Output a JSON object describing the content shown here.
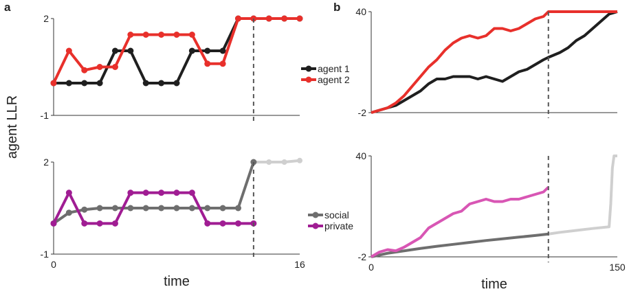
{
  "panel_labels": {
    "a": "a",
    "b": "b"
  },
  "shared_ylabel": "agent LLR",
  "colors": {
    "agent1": "#1f1f1f",
    "agent2": "#e8302b",
    "social": "#6e6e6e",
    "social_after": "#cfcfcf",
    "private_a": "#a01d93",
    "private_b": "#d856b4",
    "dashed": "#555555"
  },
  "chart_data": [
    {
      "id": "a-top",
      "type": "line",
      "ylim": [
        -1,
        2
      ],
      "yticks": [
        "2",
        "-1"
      ],
      "xlim": [
        0,
        16
      ],
      "decision_time": 13,
      "series": [
        {
          "name": "agent 1",
          "color": "agent1",
          "x": [
            0,
            1,
            2,
            3,
            4,
            5,
            6,
            7,
            8,
            9,
            10,
            11,
            12,
            13,
            14,
            15,
            16
          ],
          "y": [
            0,
            0,
            0,
            0,
            1,
            1,
            0,
            0,
            0,
            1,
            1,
            1,
            2,
            2,
            2,
            2,
            2
          ]
        },
        {
          "name": "agent 2",
          "color": "agent2",
          "x": [
            0,
            1,
            2,
            3,
            4,
            5,
            6,
            7,
            8,
            9,
            10,
            11,
            12,
            13,
            14,
            15,
            16
          ],
          "y": [
            0,
            1,
            0.4,
            0.5,
            0.5,
            1.5,
            1.5,
            1.5,
            1.5,
            1.5,
            0.6,
            0.6,
            2,
            2,
            2,
            2,
            2
          ]
        }
      ]
    },
    {
      "id": "a-bottom",
      "type": "line",
      "ylim": [
        -1,
        2
      ],
      "yticks": [
        "2",
        "-1"
      ],
      "xlim": [
        0,
        16
      ],
      "xticks": [
        "0",
        "16"
      ],
      "xlabel": "time",
      "decision_time": 13,
      "series": [
        {
          "name": "social",
          "color": "social",
          "after_color": "social_after",
          "x": [
            0,
            1,
            2,
            3,
            4,
            5,
            6,
            7,
            8,
            9,
            10,
            11,
            12,
            13,
            14,
            15,
            16
          ],
          "y": [
            0,
            0.35,
            0.45,
            0.5,
            0.5,
            0.5,
            0.5,
            0.5,
            0.5,
            0.5,
            0.5,
            0.5,
            0.5,
            2,
            2,
            2,
            2.05
          ]
        },
        {
          "name": "private",
          "color": "private_a",
          "x": [
            0,
            1,
            2,
            3,
            4,
            5,
            6,
            7,
            8,
            9,
            10,
            11,
            12,
            13
          ],
          "y": [
            0,
            1,
            0,
            0,
            0,
            1,
            1,
            1,
            1,
            1,
            0,
            0,
            0,
            0
          ]
        }
      ]
    },
    {
      "id": "b-top",
      "type": "line",
      "ylim": [
        -2,
        40
      ],
      "yticks": [
        "40",
        "-2"
      ],
      "xlim": [
        0,
        150
      ],
      "decision_time": 108,
      "series": [
        {
          "name": "agent 1",
          "color": "agent1",
          "x": [
            0,
            5,
            10,
            15,
            20,
            25,
            30,
            35,
            40,
            45,
            50,
            55,
            60,
            65,
            70,
            75,
            80,
            85,
            90,
            95,
            100,
            105,
            108,
            115,
            120,
            125,
            130,
            135,
            140,
            145,
            150
          ],
          "y": [
            -2,
            -1,
            0,
            1,
            3,
            5,
            7,
            10,
            12,
            12,
            13,
            13,
            13,
            12,
            13,
            12,
            11,
            13,
            15,
            16,
            18,
            20,
            21,
            23,
            25,
            28,
            30,
            33,
            36,
            39,
            40
          ]
        },
        {
          "name": "agent 2",
          "color": "agent2",
          "x": [
            0,
            5,
            10,
            15,
            20,
            25,
            30,
            35,
            40,
            45,
            50,
            55,
            60,
            65,
            70,
            75,
            80,
            85,
            90,
            95,
            100,
            105,
            108,
            115,
            120,
            125,
            130,
            135,
            140,
            145,
            150
          ],
          "y": [
            -2,
            -1,
            0,
            2,
            5,
            9,
            13,
            17,
            20,
            24,
            27,
            29,
            30,
            29,
            30,
            33,
            33,
            32,
            33,
            35,
            37,
            38,
            40,
            40,
            40,
            40,
            40,
            40,
            40,
            40,
            40
          ]
        }
      ]
    },
    {
      "id": "b-bottom",
      "type": "line",
      "ylim": [
        -2,
        40
      ],
      "yticks": [
        "40",
        "-2"
      ],
      "xlim": [
        0,
        150
      ],
      "xticks": [
        "0",
        "150"
      ],
      "xlabel": "time",
      "decision_time": 108,
      "series": [
        {
          "name": "social",
          "color": "social",
          "after_color": "social_after",
          "x": [
            0,
            10,
            20,
            30,
            40,
            50,
            60,
            70,
            80,
            90,
            100,
            108,
            115,
            125,
            135,
            145,
            146,
            147,
            148,
            150
          ],
          "y": [
            -2,
            -0.5,
            0.5,
            1.5,
            2.4,
            3.2,
            4,
            4.8,
            5.5,
            6.2,
            6.9,
            7.5,
            8.2,
            9,
            9.8,
            10.5,
            20,
            35,
            40,
            40
          ]
        },
        {
          "name": "private",
          "color": "private_b",
          "x": [
            0,
            5,
            10,
            15,
            20,
            25,
            30,
            35,
            40,
            45,
            50,
            55,
            60,
            65,
            70,
            75,
            80,
            85,
            90,
            95,
            100,
            105,
            108
          ],
          "y": [
            -2,
            0,
            1,
            0.5,
            2,
            4,
            6,
            10,
            12,
            14,
            16,
            17,
            20,
            21,
            22,
            21,
            21,
            22,
            22,
            23,
            24,
            25,
            27
          ]
        }
      ]
    }
  ]
}
